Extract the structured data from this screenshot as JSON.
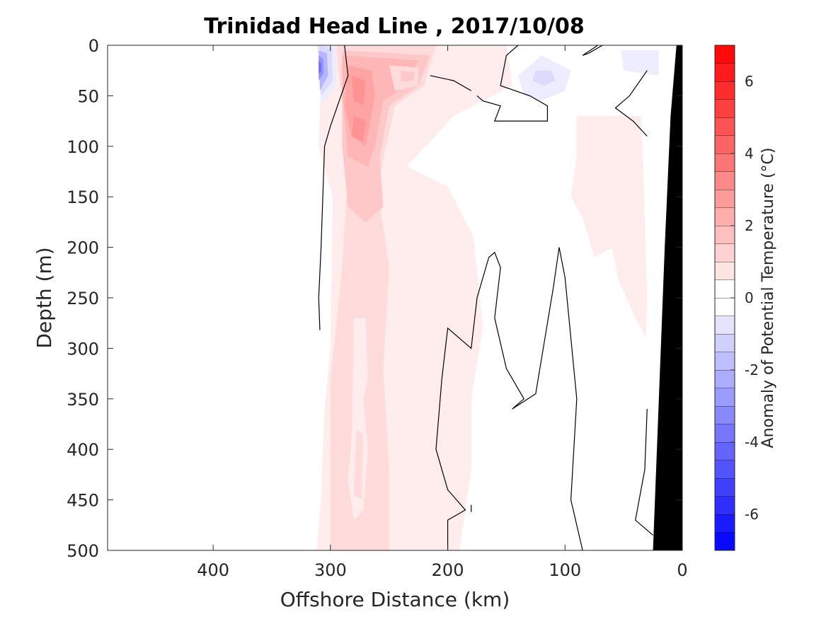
{
  "chart_data": {
    "type": "contour",
    "title": "Trinidad Head Line , 2017/10/08",
    "xlabel": "Offshore Distance (km)",
    "ylabel": "Depth (m)",
    "colorbar_label": "Anomaly of Potential Temperature (°C)",
    "x_reversed": true,
    "y_reversed": true,
    "xlim": [
      0,
      490
    ],
    "ylim": [
      0,
      500
    ],
    "xticks": [
      400,
      300,
      200,
      100,
      0
    ],
    "xtick_labels": [
      "400",
      "300",
      "200",
      "100",
      "0"
    ],
    "yticks": [
      0,
      50,
      100,
      150,
      200,
      250,
      300,
      350,
      400,
      450,
      500
    ],
    "ytick_labels": [
      "0",
      "50",
      "100",
      "150",
      "200",
      "250",
      "300",
      "350",
      "400",
      "450",
      "500"
    ],
    "clim": [
      -7,
      7
    ],
    "cbar_ticks": [
      6,
      4,
      2,
      0,
      -2,
      -4,
      -6
    ],
    "cbar_tick_labels": [
      "6",
      "4",
      "2",
      "0",
      "-2",
      "-4",
      "-6"
    ],
    "contour_interval": 0.5,
    "zero_contour_color": "#000000",
    "bathymetry_color": "#000000",
    "colormap": {
      "low": "#0000ff",
      "mid": "#ffffff",
      "high": "#ff0000"
    },
    "anomaly_regions": [
      {
        "level": 0.5,
        "polygon": [
          [
            312,
            0
          ],
          [
            150,
            0
          ],
          [
            145,
            40
          ],
          [
            195,
            70
          ],
          [
            235,
            120
          ],
          [
            200,
            140
          ],
          [
            178,
            190
          ],
          [
            170,
            280
          ],
          [
            180,
            350
          ],
          [
            180,
            420
          ],
          [
            190,
            500
          ],
          [
            312,
            500
          ],
          [
            308,
            450
          ],
          [
            305,
            360
          ],
          [
            300,
            300
          ],
          [
            298,
            150
          ],
          [
            310,
            100
          ],
          [
            308,
            30
          ]
        ]
      },
      {
        "level": 1.0,
        "polygon": [
          [
            295,
            0
          ],
          [
            210,
            0
          ],
          [
            220,
            40
          ],
          [
            245,
            60
          ],
          [
            260,
            140
          ],
          [
            250,
            220
          ],
          [
            255,
            320
          ],
          [
            250,
            420
          ],
          [
            250,
            500
          ],
          [
            300,
            500
          ],
          [
            300,
            420
          ],
          [
            300,
            330
          ],
          [
            290,
            220
          ],
          [
            285,
            120
          ],
          [
            290,
            60
          ]
        ]
      },
      {
        "level": 1.5,
        "polygon": [
          [
            290,
            5
          ],
          [
            215,
            10
          ],
          [
            225,
            40
          ],
          [
            250,
            60
          ],
          [
            258,
            110
          ],
          [
            255,
            160
          ],
          [
            270,
            175
          ],
          [
            285,
            160
          ],
          [
            290,
            100
          ]
        ]
      },
      {
        "level": 2.0,
        "polygon": [
          [
            290,
            10
          ],
          [
            225,
            15
          ],
          [
            235,
            40
          ],
          [
            255,
            55
          ],
          [
            262,
            100
          ],
          [
            268,
            120
          ],
          [
            285,
            110
          ],
          [
            290,
            50
          ]
        ]
      },
      {
        "level": 2.5,
        "polygon": [
          [
            285,
            20
          ],
          [
            265,
            25
          ],
          [
            262,
            50
          ],
          [
            270,
            100
          ],
          [
            282,
            90
          ],
          [
            288,
            60
          ]
        ]
      },
      {
        "level": 3.0,
        "polygon": [
          [
            282,
            30
          ],
          [
            270,
            35
          ],
          [
            272,
            60
          ],
          [
            280,
            55
          ]
        ]
      },
      {
        "level": 3.0,
        "polygon": [
          [
            280,
            70
          ],
          [
            270,
            75
          ],
          [
            272,
            95
          ],
          [
            282,
            90
          ]
        ]
      },
      {
        "level": 1.0,
        "polygon": [
          [
            250,
            20
          ],
          [
            225,
            22
          ],
          [
            225,
            40
          ],
          [
            245,
            45
          ]
        ]
      },
      {
        "level": 1.5,
        "polygon": [
          [
            240,
            25
          ],
          [
            228,
            27
          ],
          [
            230,
            35
          ],
          [
            240,
            36
          ]
        ]
      },
      {
        "level": 0.5,
        "polygon": [
          [
            90,
            70
          ],
          [
            35,
            70
          ],
          [
            33,
            130
          ],
          [
            30,
            250
          ],
          [
            31,
            290
          ],
          [
            40,
            270
          ],
          [
            55,
            230
          ],
          [
            60,
            200
          ],
          [
            75,
            210
          ],
          [
            85,
            170
          ],
          [
            95,
            150
          ],
          [
            90,
            110
          ]
        ]
      },
      {
        "level": 0.5,
        "polygon": [
          [
            280,
            270
          ],
          [
            270,
            270
          ],
          [
            268,
            330
          ],
          [
            272,
            350
          ],
          [
            268,
            400
          ],
          [
            272,
            460
          ],
          [
            280,
            470
          ],
          [
            285,
            430
          ],
          [
            282,
            390
          ]
        ]
      },
      {
        "level": 1.0,
        "polygon": [
          [
            278,
            380
          ],
          [
            272,
            385
          ],
          [
            273,
            450
          ],
          [
            280,
            445
          ]
        ]
      },
      {
        "level": -0.5,
        "polygon": [
          [
            140,
            30
          ],
          [
            120,
            10
          ],
          [
            95,
            25
          ],
          [
            100,
            45
          ],
          [
            120,
            55
          ],
          [
            135,
            50
          ]
        ]
      },
      {
        "level": -1.0,
        "polygon": [
          [
            125,
            25
          ],
          [
            112,
            25
          ],
          [
            108,
            35
          ],
          [
            118,
            40
          ],
          [
            128,
            35
          ]
        ]
      },
      {
        "level": -0.5,
        "polygon": [
          [
            52,
            5
          ],
          [
            20,
            5
          ],
          [
            20,
            30
          ],
          [
            50,
            25
          ]
        ]
      },
      {
        "level": -0.5,
        "polygon": [
          [
            310,
            0
          ],
          [
            295,
            0
          ],
          [
            295,
            40
          ],
          [
            308,
            60
          ]
        ]
      },
      {
        "level": -1.0,
        "polygon": [
          [
            310,
            0
          ],
          [
            299,
            2
          ],
          [
            298,
            35
          ],
          [
            308,
            50
          ]
        ]
      },
      {
        "level": -2.0,
        "polygon": [
          [
            310,
            5
          ],
          [
            303,
            8
          ],
          [
            302,
            30
          ],
          [
            309,
            45
          ]
        ]
      },
      {
        "level": -3.0,
        "polygon": [
          [
            310,
            10
          ],
          [
            306,
            14
          ],
          [
            306,
            28
          ],
          [
            310,
            35
          ]
        ]
      },
      {
        "level": -4.0,
        "polygon": [
          [
            310,
            15
          ],
          [
            308,
            18
          ],
          [
            308,
            26
          ],
          [
            310,
            28
          ]
        ]
      }
    ],
    "zero_contours": [
      [
        [
          288,
          0
        ],
        [
          285,
          30
        ],
        [
          300,
          80
        ],
        [
          305,
          100
        ],
        [
          308,
          200
        ],
        [
          310,
          250
        ],
        [
          309,
          282
        ]
      ],
      [
        [
          140,
          0
        ],
        [
          150,
          10
        ],
        [
          155,
          40
        ],
        [
          130,
          50
        ],
        [
          115,
          60
        ],
        [
          115,
          75
        ],
        [
          160,
          75
        ],
        [
          155,
          60
        ],
        [
          170,
          55
        ],
        [
          175,
          50
        ]
      ],
      [
        [
          68,
          0
        ],
        [
          80,
          8
        ],
        [
          85,
          10
        ],
        [
          72,
          0
        ]
      ],
      [
        [
          30,
          25
        ],
        [
          45,
          50
        ],
        [
          57,
          62
        ],
        [
          42,
          75
        ],
        [
          30,
          90
        ]
      ],
      [
        [
          215,
          30
        ],
        [
          195,
          35
        ],
        [
          180,
          45
        ]
      ],
      [
        [
          200,
          500
        ],
        [
          200,
          470
        ],
        [
          185,
          460
        ],
        [
          200,
          440
        ],
        [
          210,
          400
        ],
        [
          205,
          330
        ],
        [
          200,
          280
        ],
        [
          180,
          300
        ],
        [
          175,
          250
        ],
        [
          165,
          210
        ],
        [
          160,
          205
        ],
        [
          155,
          220
        ],
        [
          160,
          270
        ],
        [
          150,
          320
        ],
        [
          140,
          340
        ],
        [
          135,
          350
        ],
        [
          145,
          360
        ],
        [
          125,
          345
        ],
        [
          120,
          310
        ],
        [
          110,
          240
        ],
        [
          105,
          200
        ],
        [
          100,
          230
        ],
        [
          95,
          290
        ],
        [
          90,
          350
        ],
        [
          95,
          450
        ],
        [
          85,
          500
        ]
      ],
      [
        [
          180,
          462
        ],
        [
          180,
          455
        ]
      ],
      [
        [
          30,
          360
        ],
        [
          32,
          420
        ],
        [
          40,
          470
        ],
        [
          25,
          485
        ]
      ]
    ],
    "bathymetry": [
      [
        0,
        0
      ],
      [
        5,
        0
      ],
      [
        10,
        70
      ],
      [
        15,
        200
      ],
      [
        20,
        350
      ],
      [
        25,
        500
      ],
      [
        0,
        500
      ]
    ]
  }
}
